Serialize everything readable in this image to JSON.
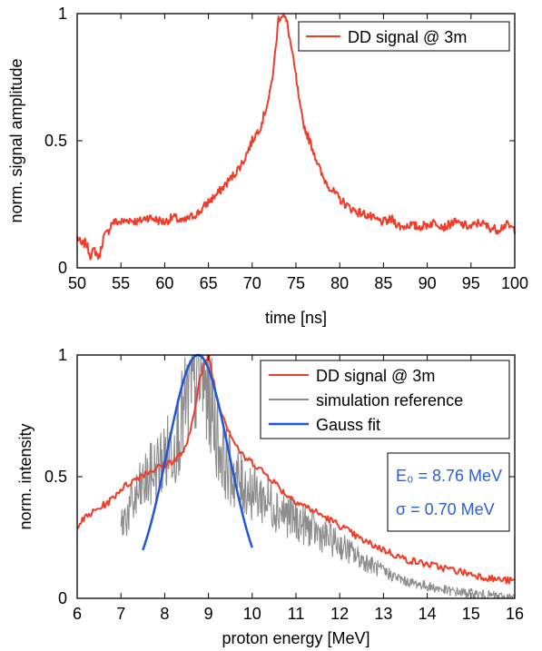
{
  "colors": {
    "signal": "#f03c28",
    "simulation": "#8c8c8c",
    "gauss": "#1f57d9",
    "annotation": "#2a5fd8"
  },
  "chart_data": [
    {
      "type": "line",
      "xlabel": "time [ns]",
      "ylabel": "norm. signal amplitude",
      "xlim": [
        50,
        100
      ],
      "ylim": [
        0,
        1
      ],
      "xticks": [
        50,
        55,
        60,
        65,
        70,
        75,
        80,
        85,
        90,
        95,
        100
      ],
      "yticks": [
        0,
        0.5,
        1
      ],
      "ytick_labels": [
        "0",
        "0.5",
        "1"
      ],
      "grid": false,
      "legend_position": "top-right",
      "series": [
        {
          "name": "DD signal @ 3m",
          "color": "#f03c28",
          "x": [
            50,
            50.5,
            51,
            51.5,
            52,
            52.5,
            53,
            53.5,
            54,
            55,
            56,
            57,
            58,
            59,
            60,
            61,
            62,
            63,
            64,
            65,
            66,
            67,
            68,
            69,
            70,
            71,
            71.5,
            72,
            72.5,
            73,
            73.5,
            74,
            74.5,
            75,
            75.5,
            76,
            77,
            78,
            79,
            80,
            81,
            82,
            83,
            84,
            85,
            86,
            87,
            88,
            89,
            90,
            91,
            92,
            93,
            94,
            95,
            96,
            97,
            98,
            99,
            100
          ],
          "y": [
            0.12,
            0.09,
            0.1,
            0.05,
            0.07,
            0.04,
            0.12,
            0.14,
            0.18,
            0.18,
            0.19,
            0.18,
            0.2,
            0.19,
            0.18,
            0.2,
            0.18,
            0.2,
            0.22,
            0.26,
            0.29,
            0.33,
            0.37,
            0.42,
            0.5,
            0.56,
            0.62,
            0.68,
            0.8,
            0.98,
            1.0,
            0.96,
            0.86,
            0.75,
            0.62,
            0.55,
            0.46,
            0.36,
            0.31,
            0.27,
            0.24,
            0.22,
            0.21,
            0.19,
            0.18,
            0.19,
            0.16,
            0.17,
            0.16,
            0.17,
            0.18,
            0.16,
            0.18,
            0.17,
            0.16,
            0.18,
            0.16,
            0.15,
            0.17,
            0.15
          ]
        }
      ]
    },
    {
      "type": "line",
      "xlabel": "proton energy [MeV]",
      "ylabel": "norm. intensity",
      "xlim": [
        6,
        16
      ],
      "ylim": [
        0,
        1
      ],
      "xticks": [
        6,
        7,
        8,
        9,
        10,
        11,
        12,
        13,
        14,
        15,
        16
      ],
      "yticks": [
        0,
        0.5,
        1
      ],
      "ytick_labels": [
        "0",
        "0.5",
        "1"
      ],
      "grid": false,
      "legend_position": "top-right",
      "series": [
        {
          "name": "DD signal @ 3m",
          "color": "#f03c28",
          "x": [
            6,
            6.25,
            6.5,
            6.75,
            7,
            7.25,
            7.5,
            7.75,
            8,
            8.25,
            8.5,
            8.6,
            8.8,
            9,
            9.2,
            9.4,
            9.6,
            9.8,
            10,
            10.25,
            10.5,
            10.75,
            11,
            11.5,
            12,
            12.5,
            13,
            13.5,
            14,
            14.5,
            15,
            15.5,
            16
          ],
          "y": [
            0.3,
            0.34,
            0.37,
            0.4,
            0.45,
            0.48,
            0.51,
            0.53,
            0.55,
            0.57,
            0.62,
            0.7,
            0.9,
            1.0,
            0.82,
            0.72,
            0.64,
            0.58,
            0.56,
            0.52,
            0.48,
            0.43,
            0.4,
            0.35,
            0.3,
            0.24,
            0.2,
            0.16,
            0.14,
            0.12,
            0.1,
            0.08,
            0.07
          ]
        },
        {
          "name": "simulation reference",
          "color": "#8c8c8c",
          "x": [
            7,
            7.25,
            7.5,
            7.75,
            8,
            8.25,
            8.5,
            8.75,
            9,
            9.25,
            9.5,
            9.75,
            10,
            10.5,
            11,
            11.5,
            12,
            12.5,
            13,
            13.5,
            14,
            14.5,
            15,
            15.5,
            16
          ],
          "y": [
            0.3,
            0.38,
            0.46,
            0.52,
            0.58,
            0.65,
            0.8,
            0.92,
            0.85,
            0.62,
            0.52,
            0.47,
            0.44,
            0.38,
            0.32,
            0.27,
            0.22,
            0.16,
            0.11,
            0.07,
            0.05,
            0.03,
            0.02,
            0.01,
            0.0
          ]
        },
        {
          "name": "Gauss fit",
          "color": "#1f57d9",
          "mean": 8.76,
          "sigma": 0.7,
          "xrange": [
            7.5,
            10
          ]
        }
      ],
      "annotations": [
        "E₀ = 8.76 MeV",
        "σ = 0.70 MeV"
      ]
    }
  ]
}
